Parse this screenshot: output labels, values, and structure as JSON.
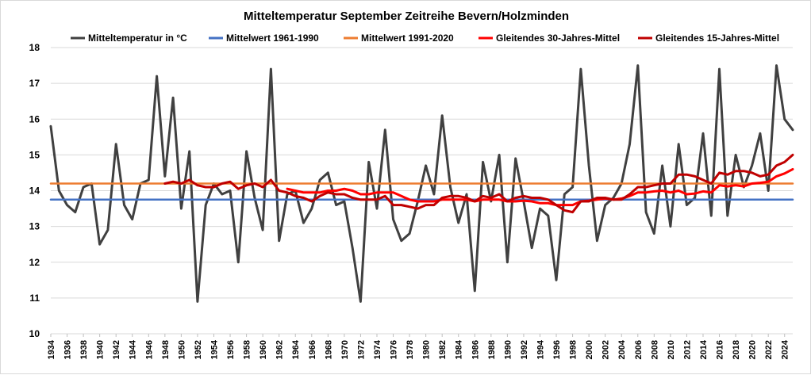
{
  "chart_data": {
    "type": "line",
    "title": "Mitteltemperatur September Zeitreihe Bevern/Holzminden",
    "xlabel": "",
    "ylabel": "",
    "ylim": [
      10,
      18
    ],
    "yticks": [
      10,
      11,
      12,
      13,
      14,
      15,
      16,
      17,
      18
    ],
    "xlim": [
      1934,
      2025
    ],
    "xticks": [
      1934,
      1936,
      1938,
      1940,
      1942,
      1944,
      1946,
      1948,
      1950,
      1952,
      1954,
      1956,
      1958,
      1960,
      1962,
      1964,
      1966,
      1968,
      1970,
      1972,
      1974,
      1976,
      1978,
      1980,
      1982,
      1984,
      1986,
      1988,
      1990,
      1992,
      1994,
      1996,
      1998,
      2000,
      2002,
      2004,
      2006,
      2008,
      2010,
      2012,
      2014,
      2016,
      2018,
      2020,
      2022,
      2024
    ],
    "grid": true,
    "legend_position": "top",
    "series": [
      {
        "name": "Mitteltemperatur in °C",
        "color": "#404040",
        "x": [
          1934,
          1935,
          1936,
          1937,
          1938,
          1939,
          1940,
          1941,
          1942,
          1943,
          1944,
          1945,
          1946,
          1947,
          1948,
          1949,
          1950,
          1951,
          1952,
          1953,
          1954,
          1955,
          1956,
          1957,
          1958,
          1959,
          1960,
          1961,
          1962,
          1963,
          1964,
          1965,
          1966,
          1967,
          1968,
          1969,
          1970,
          1971,
          1972,
          1973,
          1974,
          1975,
          1976,
          1977,
          1978,
          1979,
          1980,
          1981,
          1982,
          1983,
          1984,
          1985,
          1986,
          1987,
          1988,
          1989,
          1990,
          1991,
          1992,
          1993,
          1994,
          1995,
          1996,
          1997,
          1998,
          1999,
          2000,
          2001,
          2002,
          2003,
          2004,
          2005,
          2006,
          2007,
          2008,
          2009,
          2010,
          2011,
          2012,
          2013,
          2014,
          2015,
          2016,
          2017,
          2018,
          2019,
          2020,
          2021,
          2022,
          2023,
          2024,
          2025
        ],
        "values": [
          15.8,
          14.0,
          13.6,
          13.4,
          14.1,
          14.2,
          12.5,
          12.9,
          15.3,
          13.6,
          13.2,
          14.2,
          14.3,
          17.2,
          14.4,
          16.6,
          13.5,
          15.1,
          10.9,
          13.6,
          14.2,
          13.9,
          14.0,
          12.0,
          15.1,
          13.8,
          12.9,
          17.4,
          12.6,
          13.9,
          14.0,
          13.1,
          13.5,
          14.3,
          14.5,
          13.6,
          13.7,
          12.4,
          10.9,
          14.8,
          13.5,
          15.7,
          13.2,
          12.6,
          12.8,
          13.7,
          14.7,
          13.9,
          16.1,
          14.1,
          13.1,
          13.9,
          11.2,
          14.8,
          13.7,
          15.0,
          12.0,
          14.9,
          13.7,
          12.4,
          13.5,
          13.3,
          11.5,
          13.9,
          14.1,
          17.4,
          14.7,
          12.6,
          13.6,
          13.8,
          14.2,
          15.3,
          17.5,
          13.4,
          12.8,
          14.7,
          13.0,
          15.3,
          13.6,
          13.8,
          15.6,
          13.3,
          17.4,
          13.3,
          15.0,
          14.1,
          14.7,
          15.6,
          14.0,
          17.5,
          16.0,
          15.7
        ]
      },
      {
        "name": "Mittelwert 1961-1990",
        "color": "#4472c4",
        "x": [
          1934,
          2025
        ],
        "values": [
          13.75,
          13.75
        ]
      },
      {
        "name": "Mittelwert 1991-2020",
        "color": "#ed7d31",
        "x": [
          1934,
          2025
        ],
        "values": [
          14.2,
          14.2
        ]
      },
      {
        "name": "Gleitendes 30-Jahres-Mittel",
        "color": "#ff0000",
        "x": [
          1963,
          1964,
          1965,
          1966,
          1967,
          1968,
          1969,
          1970,
          1971,
          1972,
          1973,
          1974,
          1975,
          1976,
          1977,
          1978,
          1979,
          1980,
          1981,
          1982,
          1983,
          1984,
          1985,
          1986,
          1987,
          1988,
          1989,
          1990,
          1991,
          1992,
          1993,
          1994,
          1995,
          1996,
          1997,
          1998,
          1999,
          2000,
          2001,
          2002,
          2003,
          2004,
          2005,
          2006,
          2007,
          2008,
          2009,
          2010,
          2011,
          2012,
          2013,
          2014,
          2015,
          2016,
          2017,
          2018,
          2019,
          2020,
          2021,
          2022,
          2023,
          2024,
          2025
        ],
        "values": [
          14.05,
          14.0,
          13.95,
          13.95,
          13.95,
          14.0,
          14.0,
          14.05,
          14.0,
          13.9,
          13.9,
          13.95,
          13.95,
          13.95,
          13.85,
          13.75,
          13.7,
          13.7,
          13.7,
          13.75,
          13.75,
          13.75,
          13.75,
          13.7,
          13.75,
          13.75,
          13.75,
          13.7,
          13.7,
          13.72,
          13.7,
          13.65,
          13.65,
          13.6,
          13.6,
          13.6,
          13.7,
          13.72,
          13.75,
          13.78,
          13.75,
          13.78,
          13.85,
          13.95,
          13.95,
          13.98,
          14.0,
          13.95,
          14.0,
          13.9,
          13.92,
          13.98,
          13.95,
          14.15,
          14.12,
          14.15,
          14.12,
          14.2,
          14.22,
          14.25,
          14.4,
          14.48,
          14.6
        ]
      },
      {
        "name": "Gleitendes 15-Jahres-Mittel",
        "color": "#c00000",
        "x": [
          1948,
          1949,
          1950,
          1951,
          1952,
          1953,
          1954,
          1955,
          1956,
          1957,
          1958,
          1959,
          1960,
          1961,
          1962,
          1963,
          1964,
          1965,
          1966,
          1967,
          1968,
          1969,
          1970,
          1971,
          1972,
          1973,
          1974,
          1975,
          1976,
          1977,
          1978,
          1979,
          1980,
          1981,
          1982,
          1983,
          1984,
          1985,
          1986,
          1987,
          1988,
          1989,
          1990,
          1991,
          1992,
          1993,
          1994,
          1995,
          1996,
          1997,
          1998,
          1999,
          2000,
          2001,
          2002,
          2003,
          2004,
          2005,
          2006,
          2007,
          2008,
          2009,
          2010,
          2011,
          2012,
          2013,
          2014,
          2015,
          2016,
          2017,
          2018,
          2019,
          2020,
          2021,
          2022,
          2023,
          2024,
          2025
        ],
        "values": [
          14.2,
          14.25,
          14.2,
          14.3,
          14.15,
          14.1,
          14.1,
          14.2,
          14.25,
          14.05,
          14.15,
          14.2,
          14.1,
          14.3,
          14.0,
          13.95,
          13.85,
          13.8,
          13.7,
          13.85,
          13.95,
          13.9,
          13.9,
          13.8,
          13.75,
          13.75,
          13.75,
          13.85,
          13.6,
          13.6,
          13.55,
          13.5,
          13.6,
          13.6,
          13.8,
          13.85,
          13.85,
          13.8,
          13.7,
          13.85,
          13.8,
          13.9,
          13.7,
          13.8,
          13.85,
          13.8,
          13.8,
          13.75,
          13.6,
          13.45,
          13.4,
          13.7,
          13.7,
          13.8,
          13.8,
          13.75,
          13.75,
          13.9,
          14.1,
          14.1,
          14.15,
          14.2,
          14.2,
          14.45,
          14.45,
          14.4,
          14.3,
          14.2,
          14.5,
          14.45,
          14.55,
          14.55,
          14.5,
          14.4,
          14.45,
          14.7,
          14.8,
          15.0
        ]
      }
    ]
  }
}
